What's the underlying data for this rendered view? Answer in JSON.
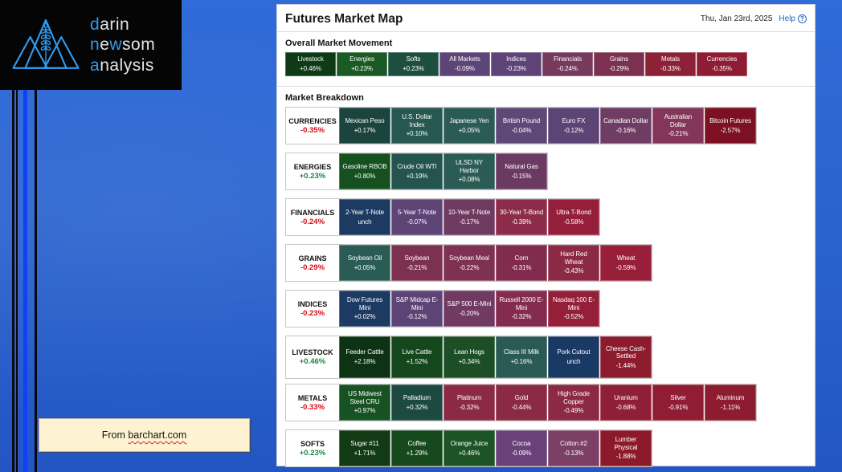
{
  "colors": {
    "positive_text": "#118a3e",
    "negative_text": "#da0b15",
    "help_link": "#1b66c9",
    "logo_accent": "#2e9bf0",
    "stripe_blue": "#1240f5",
    "panel_bg": "#ffffff",
    "note_bg": "#fdf3d2"
  },
  "logo": {
    "lines": [
      [
        {
          "t": "d",
          "hl": true
        },
        {
          "t": "arin",
          "hl": false
        }
      ],
      [
        {
          "t": "n",
          "hl": true
        },
        {
          "t": "e",
          "hl": false
        },
        {
          "t": "w",
          "hl": true
        },
        {
          "t": "som",
          "hl": false
        }
      ],
      [
        {
          "t": "a",
          "hl": true
        },
        {
          "t": "nalysis",
          "hl": false
        }
      ]
    ]
  },
  "note": {
    "prefix": "From ",
    "link_text": "barchart.com"
  },
  "panel": {
    "title": "Futures Market Map",
    "date": "Thu, Jan 23rd, 2025",
    "help_label": "Help",
    "help_icon": "?",
    "sections": {
      "overall_label": "Overall Market Movement",
      "breakdown_label": "Market Breakdown"
    },
    "overall_tiles": [
      {
        "name": "Livestock",
        "change": "+0.46%",
        "color": "#0e3a16"
      },
      {
        "name": "Energies",
        "change": "+0.23%",
        "color": "#1a5a24"
      },
      {
        "name": "Softs",
        "change": "+0.23%",
        "color": "#1d4f41"
      },
      {
        "name": "All Markets",
        "change": "-0.09%",
        "color": "#5d4677"
      },
      {
        "name": "Indices",
        "change": "-0.23%",
        "color": "#5d4377"
      },
      {
        "name": "Financials",
        "change": "-0.24%",
        "color": "#753a5c"
      },
      {
        "name": "Grains",
        "change": "-0.29%",
        "color": "#7c3150"
      },
      {
        "name": "Metals",
        "change": "-0.33%",
        "color": "#8c2138"
      },
      {
        "name": "Currencies",
        "change": "-0.35%",
        "color": "#8e1c33"
      }
    ],
    "groups": [
      {
        "label": "CURRENCIES",
        "change": "-0.35%",
        "tall": false,
        "tiles": [
          {
            "name": "Mexican Peso",
            "change": "+0.17%",
            "color": "#1b443e"
          },
          {
            "name": "U.S. Dollar Index",
            "change": "+0.10%",
            "color": "#265751"
          },
          {
            "name": "Japanese Yen",
            "change": "+0.05%",
            "color": "#2a5b55"
          },
          {
            "name": "British Pound",
            "change": "-0.04%",
            "color": "#5e4878"
          },
          {
            "name": "Euro FX",
            "change": "-0.12%",
            "color": "#5c4475"
          },
          {
            "name": "Canadian Dollar",
            "change": "-0.16%",
            "color": "#6f3d63"
          },
          {
            "name": "Australian Dollar",
            "change": "-0.21%",
            "color": "#84365a"
          },
          {
            "name": "Bitcoin Futures",
            "change": "-2.57%",
            "color": "#7d1022"
          }
        ]
      },
      {
        "label": "ENERGIES",
        "change": "+0.23%",
        "tall": false,
        "tiles": [
          {
            "name": "Gasoline RBOB",
            "change": "+0.80%",
            "color": "#15501f"
          },
          {
            "name": "Crude Oil WTI",
            "change": "+0.19%",
            "color": "#23544e"
          },
          {
            "name": "ULSD NY Harbor",
            "change": "+0.08%",
            "color": "#2a5b55"
          },
          {
            "name": "Natural Gas",
            "change": "-0.15%",
            "color": "#6b3a62"
          }
        ]
      },
      {
        "label": "FINANCIALS",
        "change": "-0.24%",
        "tall": false,
        "tiles": [
          {
            "name": "2-Year T-Note",
            "change": "unch",
            "color": "#1d3a63"
          },
          {
            "name": "5-Year T-Note",
            "change": "-0.07%",
            "color": "#5d4376"
          },
          {
            "name": "10-Year T-Note",
            "change": "-0.17%",
            "color": "#6f3a60"
          },
          {
            "name": "30-Year T-Bond",
            "change": "-0.39%",
            "color": "#8c2c4a"
          },
          {
            "name": "Ultra T-Bond",
            "change": "-0.58%",
            "color": "#951f3a"
          }
        ]
      },
      {
        "label": "GRAINS",
        "change": "-0.29%",
        "tall": false,
        "tiles": [
          {
            "name": "Soybean Oil",
            "change": "+0.05%",
            "color": "#2a5b55"
          },
          {
            "name": "Soybean",
            "change": "-0.21%",
            "color": "#7c3150"
          },
          {
            "name": "Soybean Meal",
            "change": "-0.22%",
            "color": "#7e3152"
          },
          {
            "name": "Corn",
            "change": "-0.31%",
            "color": "#812c4c"
          },
          {
            "name": "Hard Red Wheat",
            "change": "-0.43%",
            "color": "#8c2a45"
          },
          {
            "name": "Wheat",
            "change": "-0.59%",
            "color": "#971f39"
          }
        ]
      },
      {
        "label": "INDICES",
        "change": "-0.23%",
        "tall": false,
        "tiles": [
          {
            "name": "Dow Futures Mini",
            "change": "+0.02%",
            "color": "#1d3a63"
          },
          {
            "name": "S&P Midcap E-Mini",
            "change": "-0.12%",
            "color": "#5d4376"
          },
          {
            "name": "S&P 500 E-Mini",
            "change": "-0.20%",
            "color": "#703a62"
          },
          {
            "name": "Russell 2000 E-Mini",
            "change": "-0.32%",
            "color": "#842c4f"
          },
          {
            "name": "Nasdaq 100 E-Mini",
            "change": "-0.52%",
            "color": "#961f38"
          }
        ]
      },
      {
        "label": "LIVESTOCK",
        "change": "+0.46%",
        "tall": true,
        "tiles": [
          {
            "name": "Feeder Cattle",
            "change": "+2.18%",
            "color": "#0e3314"
          },
          {
            "name": "Live Cattle",
            "change": "+1.52%",
            "color": "#14471c"
          },
          {
            "name": "Lean Hogs",
            "change": "+0.34%",
            "color": "#1d4f26"
          },
          {
            "name": "Class III Milk",
            "change": "+0.16%",
            "color": "#2a5a54"
          },
          {
            "name": "Pork Cutout",
            "change": "unch",
            "color": "#1a3a66"
          },
          {
            "name": "Cheese Cash-Settled",
            "change": "-1.44%",
            "color": "#8c1b2e"
          }
        ]
      },
      {
        "label": "METALS",
        "change": "-0.33%",
        "tall": false,
        "tiles": [
          {
            "name": "US Midwest Steel CRU",
            "change": "+0.97%",
            "color": "#175322"
          },
          {
            "name": "Palladium",
            "change": "+0.32%",
            "color": "#1d4a40"
          },
          {
            "name": "Platinum",
            "change": "-0.32%",
            "color": "#8c2a45"
          },
          {
            "name": "Gold",
            "change": "-0.44%",
            "color": "#8a2a43"
          },
          {
            "name": "High Grade Copper",
            "change": "-0.49%",
            "color": "#8c2a43"
          },
          {
            "name": "Uranium",
            "change": "-0.68%",
            "color": "#8e1f36"
          },
          {
            "name": "Silver",
            "change": "-0.91%",
            "color": "#901d33"
          },
          {
            "name": "Aluminum",
            "change": "-1.11%",
            "color": "#8e1c31"
          }
        ]
      },
      {
        "label": "SOFTS",
        "change": "+0.23%",
        "tall": false,
        "tiles": [
          {
            "name": "Sugar #11",
            "change": "+1.71%",
            "color": "#123a14"
          },
          {
            "name": "Coffee",
            "change": "+1.29%",
            "color": "#164a1d"
          },
          {
            "name": "Orange Juice",
            "change": "+0.46%",
            "color": "#1d5426"
          },
          {
            "name": "Cocoa",
            "change": "-0.09%",
            "color": "#6a4279"
          },
          {
            "name": "Cotton #2",
            "change": "-0.13%",
            "color": "#7c3f66"
          },
          {
            "name": "Lumber Physical",
            "change": "-1.88%",
            "color": "#8c1a2b"
          }
        ]
      }
    ]
  }
}
